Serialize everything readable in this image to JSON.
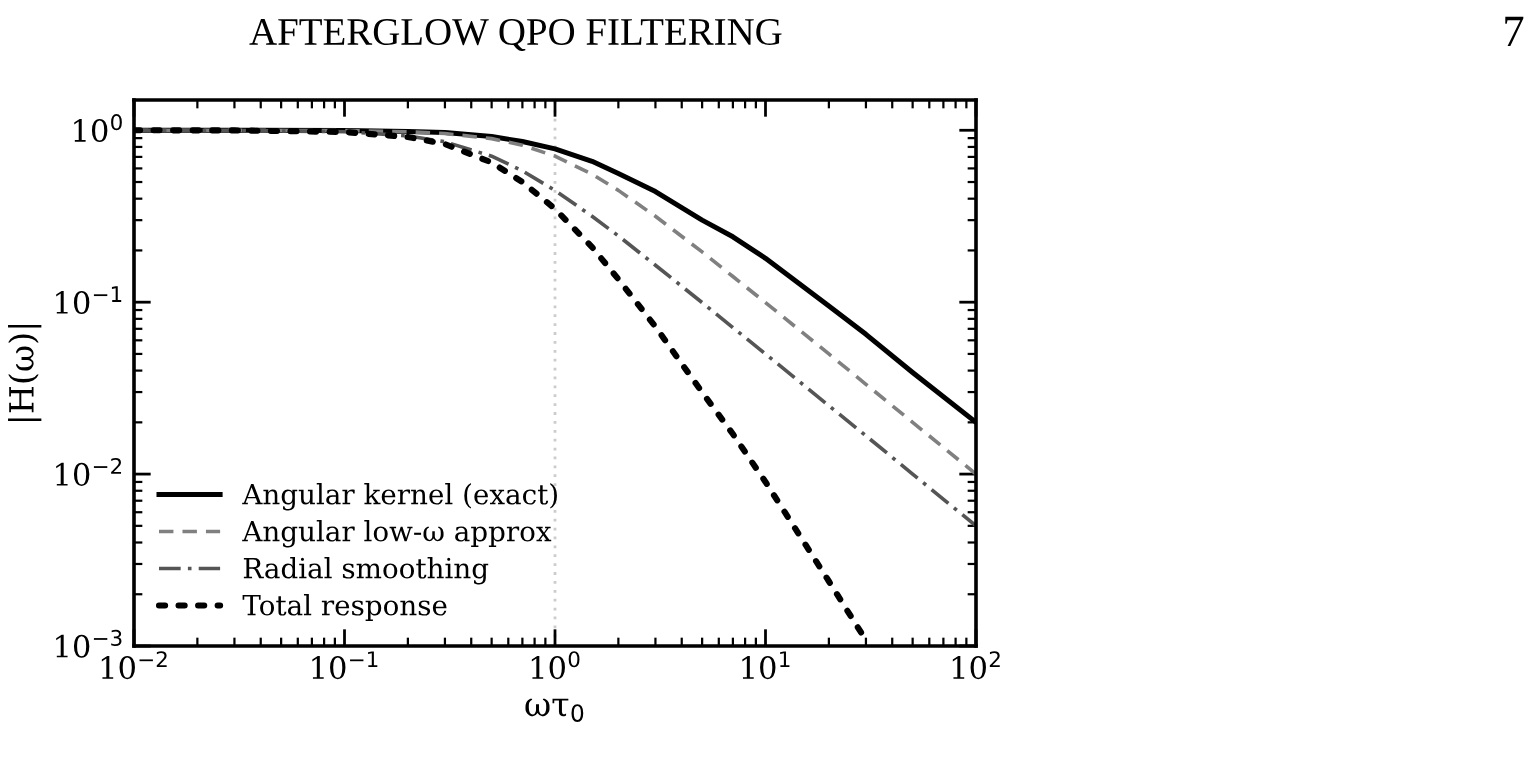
{
  "chart_data": {
    "type": "line",
    "xlabel": "ωτ$_{0}$",
    "ylabel": "|H(ω)|",
    "annotations": [
      "AFTERGLOW QPO FILTERING",
      "7"
    ],
    "x": [
      0.01,
      0.03,
      0.1,
      0.2,
      0.3,
      0.5,
      0.7,
      1,
      1.5,
      2,
      3,
      5,
      7,
      10,
      20,
      30,
      50,
      100
    ],
    "series": [
      {
        "name": "Angular kernel (exact)",
        "color": "#000000",
        "line_style": "solid",
        "values": [
          1,
          1,
          0.996,
          0.985,
          0.97,
          0.92,
          0.86,
          0.78,
          0.66,
          0.56,
          0.44,
          0.3,
          0.24,
          0.18,
          0.095,
          0.065,
          0.039,
          0.02
        ]
      },
      {
        "name": "Angular low-ω approx",
        "color": "#808080",
        "line_style": "dashed",
        "values": [
          1,
          1,
          0.995,
          0.981,
          0.958,
          0.894,
          0.819,
          0.707,
          0.555,
          0.447,
          0.316,
          0.196,
          0.141,
          0.0995,
          0.05,
          0.0333,
          0.02,
          0.01
        ]
      },
      {
        "name": "Radial smoothing",
        "color": "#555555",
        "line_style": "dashdot",
        "values": [
          1,
          0.998,
          0.981,
          0.928,
          0.857,
          0.707,
          0.581,
          0.447,
          0.316,
          0.243,
          0.164,
          0.0995,
          0.0712,
          0.05,
          0.025,
          0.0167,
          0.01,
          0.005
        ]
      },
      {
        "name": "Total response",
        "color": "#000000",
        "line_style": "dotted",
        "values": [
          1,
          0.998,
          0.977,
          0.914,
          0.831,
          0.65,
          0.5,
          0.349,
          0.209,
          0.136,
          0.072,
          0.0299,
          0.0171,
          0.009,
          0.00238,
          0.00108,
          null,
          null
        ]
      }
    ],
    "log": "xy",
    "xlim": [
      0.01,
      100
    ],
    "ylim": [
      0.001,
      1.5
    ],
    "xticks": [
      {
        "value": 0.01,
        "label": "10$^{−2}$"
      },
      {
        "value": 0.1,
        "label": "10$^{−1}$"
      },
      {
        "value": 1,
        "label": "10$^{0}$"
      },
      {
        "value": 10,
        "label": "10$^{1}$"
      },
      {
        "value": 100,
        "label": "10$^{2}$"
      }
    ],
    "yticks": [
      {
        "value": 0.001,
        "label": "10$^{−3}$"
      },
      {
        "value": 0.01,
        "label": "10$^{−2}$"
      },
      {
        "value": 0.1,
        "label": "10$^{−1}$"
      },
      {
        "value": 1,
        "label": "10$^{0}$"
      }
    ],
    "ref_lines": [
      {
        "axis": "x",
        "value": 1,
        "color": "#cccccc",
        "line_style": "dotted"
      }
    ],
    "grid": false,
    "legend": "bottom left"
  }
}
